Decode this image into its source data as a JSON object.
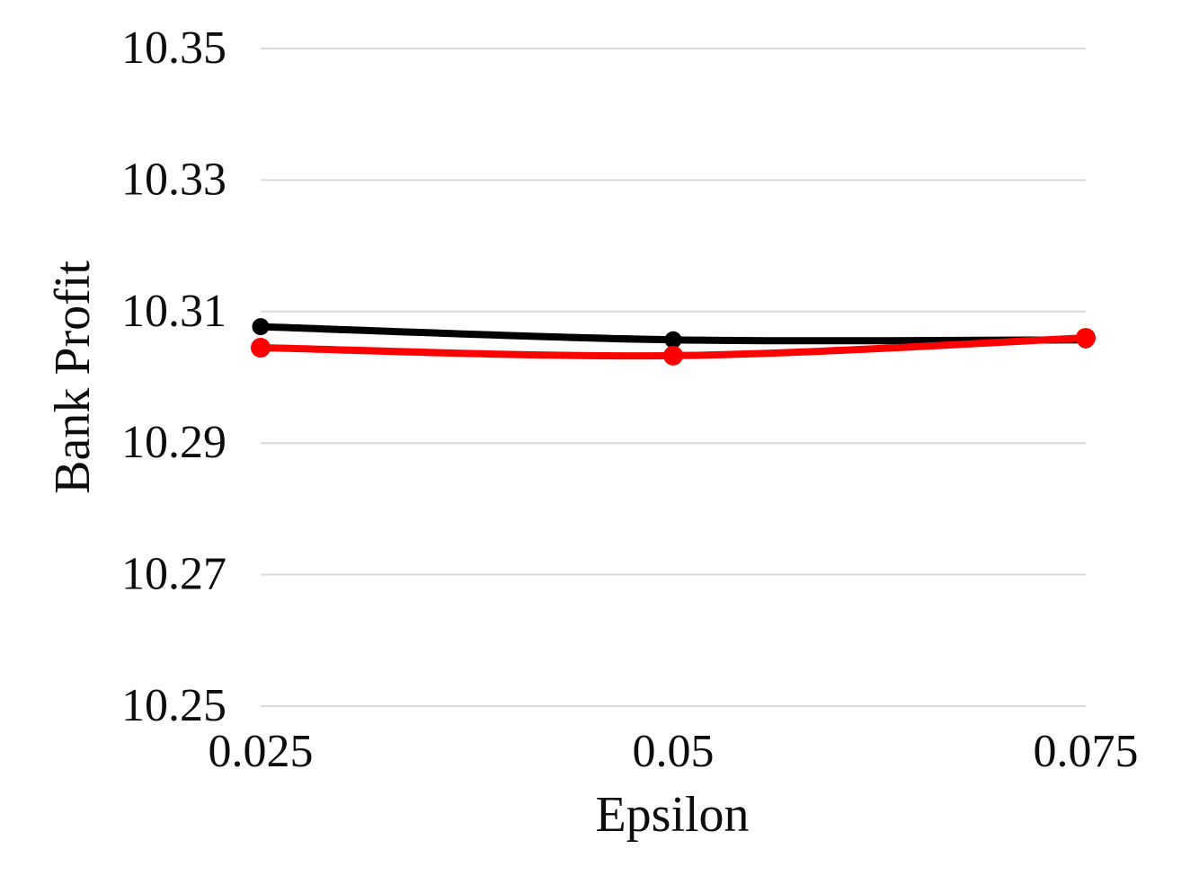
{
  "chart_data": {
    "type": "line",
    "title": "",
    "xlabel": "Epsilon",
    "ylabel": "Bank Profit",
    "x": [
      0.025,
      0.05,
      0.075
    ],
    "xtick_labels": [
      "0.025",
      "0.05",
      "0.075"
    ],
    "ytick_labels": [
      "10.25",
      "10.27",
      "10.29",
      "10.31",
      "10.33",
      "10.35"
    ],
    "yticks": [
      10.25,
      10.27,
      10.29,
      10.31,
      10.33,
      10.35
    ],
    "ylim": [
      10.25,
      10.35
    ],
    "grid": "horizontal",
    "legend": "none",
    "line_style": "smooth-with-markers",
    "series": [
      {
        "name": "series-black",
        "color": "#000000",
        "values": [
          10.3077,
          10.3057,
          10.3057
        ]
      },
      {
        "name": "series-red",
        "color": "#ff0000",
        "values": [
          10.3045,
          10.3033,
          10.306
        ]
      }
    ]
  }
}
